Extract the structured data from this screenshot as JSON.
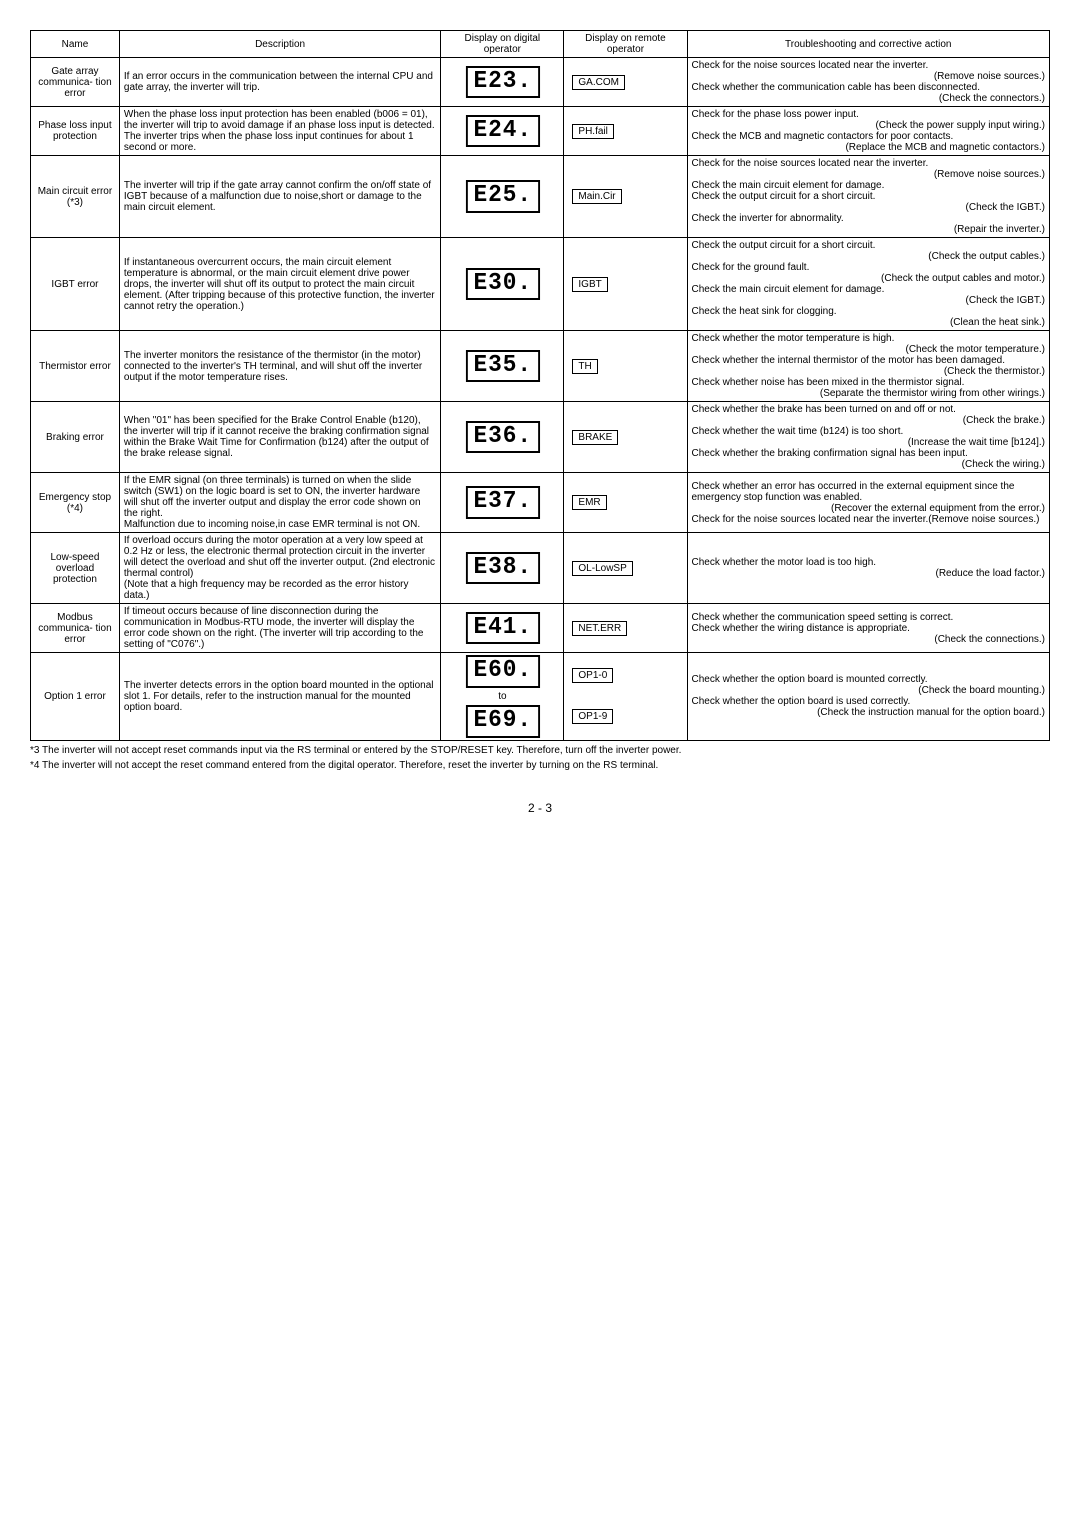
{
  "headers": {
    "name": "Name",
    "desc": "Description",
    "disp": "Display on digital operator",
    "remote": "Display on remote operator",
    "action": "Troubleshooting and corrective action"
  },
  "rows": [
    {
      "name": "Gate array communica- tion error",
      "desc": "If an error occurs in the communication between the internal CPU and gate array, the inverter will trip.",
      "seg": "E23.",
      "remote": "GA.COM",
      "action": [
        {
          "t": "Check for the noise sources located near the inverter.",
          "a": "l"
        },
        {
          "t": "(Remove noise sources.)",
          "a": "r"
        },
        {
          "t": "Check whether the communication cable has been disconnected.",
          "a": "l"
        },
        {
          "t": "(Check the connectors.)",
          "a": "r"
        }
      ]
    },
    {
      "name": "Phase loss input protection",
      "desc": "When the phase loss input protection has been enabled (b006 = 01), the inverter will trip to avoid damage if an phase loss input is detected. The inverter trips when the phase loss input continues for about 1 second or more.",
      "seg": "E24.",
      "remote": "PH.fail",
      "action": [
        {
          "t": "Check for the phase loss power input.",
          "a": "l"
        },
        {
          "t": "(Check the power supply input wiring.)",
          "a": "r"
        },
        {
          "t": "Check the MCB and magnetic contactors for poor contacts.",
          "a": "l"
        },
        {
          "t": "(Replace the MCB and magnetic contactors.)",
          "a": "r"
        }
      ]
    },
    {
      "name": "Main circuit error (*3)",
      "desc": "The inverter will trip if the gate array cannot confirm the on/off state of IGBT because of a malfunction due to noise,short or damage to the main circuit element.",
      "seg": "E25.",
      "remote": "Main.Cir",
      "action": [
        {
          "t": "Check for the noise sources located near the inverter.",
          "a": "l"
        },
        {
          "t": "(Remove noise sources.)",
          "a": "r"
        },
        {
          "t": "Check the main circuit element for damage.",
          "a": "l"
        },
        {
          "t": "Check the output circuit for a short circuit.",
          "a": "l"
        },
        {
          "t": "(Check the IGBT.)",
          "a": "r"
        },
        {
          "t": "Check the inverter for abnormality.",
          "a": "l"
        },
        {
          "t": "(Repair the inverter.)",
          "a": "r"
        }
      ]
    },
    {
      "name": "IGBT error",
      "desc": "If instantaneous overcurrent occurs, the main circuit element temperature is abnormal, or the main circuit element drive power drops, the inverter will shut off its output to protect the main circuit element. (After tripping because of this protective function, the inverter cannot retry the operation.)",
      "seg": "E30.",
      "remote": "IGBT",
      "action": [
        {
          "t": "Check the output circuit for a short circuit.",
          "a": "l"
        },
        {
          "t": "(Check the output cables.)",
          "a": "r"
        },
        {
          "t": "Check for the ground fault.",
          "a": "l"
        },
        {
          "t": "(Check the output cables and motor.)",
          "a": "r"
        },
        {
          "t": "Check the main circuit element for damage.",
          "a": "l"
        },
        {
          "t": "(Check the IGBT.)",
          "a": "r"
        },
        {
          "t": "Check the heat sink for clogging.",
          "a": "l"
        },
        {
          "t": "(Clean the heat sink.)",
          "a": "r"
        }
      ]
    },
    {
      "name": "Thermistor error",
      "desc": "The inverter monitors the resistance of the thermistor (in the motor) connected to the inverter's TH terminal, and will shut off the inverter output if the motor temperature rises.",
      "seg": "E35.",
      "remote": "TH",
      "action": [
        {
          "t": "Check whether the motor temperature is high.",
          "a": "l"
        },
        {
          "t": "(Check the motor temperature.)",
          "a": "r"
        },
        {
          "t": "Check whether the internal thermistor of the motor has been damaged.",
          "a": "l"
        },
        {
          "t": "(Check the thermistor.)",
          "a": "r"
        },
        {
          "t": "Check whether noise has been mixed in the thermistor signal.",
          "a": "l"
        },
        {
          "t": "(Separate the thermistor wiring from other wirings.)",
          "a": "r"
        }
      ]
    },
    {
      "name": "Braking error",
      "desc": "When \"01\" has been specified for the Brake Control Enable (b120), the inverter will trip if it cannot receive the braking confirmation signal within the Brake Wait Time for Confirmation (b124) after the output of the brake release signal.",
      "seg": "E36.",
      "remote": "BRAKE",
      "action": [
        {
          "t": "Check whether the brake has been turned on and off or not.",
          "a": "l"
        },
        {
          "t": "(Check the brake.)",
          "a": "r"
        },
        {
          "t": "Check whether the wait time (b124) is too short.",
          "a": "l"
        },
        {
          "t": "(Increase the wait time [b124].)",
          "a": "r"
        },
        {
          "t": "Check whether the braking confirmation signal has been input.",
          "a": "l"
        },
        {
          "t": "(Check the wiring.)",
          "a": "r"
        }
      ]
    },
    {
      "name": "Emergency stop (*4)",
      "desc": "If the EMR signal (on three terminals) is turned on when the slide switch (SW1) on the logic board is set to ON, the inverter hardware will shut off the inverter output and display the error code shown on the right.\nMalfunction due to incoming noise,in case EMR terminal is not ON.",
      "seg": "E37.",
      "remote": "EMR",
      "action": [
        {
          "t": "Check whether an error has occurred in the external equipment since the emergency stop function was enabled.",
          "a": "l"
        },
        {
          "t": "(Recover the external equipment from the error.)",
          "a": "r"
        },
        {
          "t": "Check for the noise sources located near the inverter.(Remove noise sources.)",
          "a": "l"
        }
      ]
    },
    {
      "name": "Low-speed overload protection",
      "desc": "If overload occurs during the motor operation at a very low speed at 0.2 Hz or less, the electronic thermal protection circuit in the inverter will detect the overload and shut off the inverter output. (2nd electronic thermal control)\n(Note that a high frequency may be recorded as the error history data.)",
      "seg": "E38.",
      "remote": "OL-LowSP",
      "action": [
        {
          "t": "Check whether the motor load is too high.",
          "a": "l"
        },
        {
          "t": "(Reduce the load factor.)",
          "a": "r"
        }
      ]
    },
    {
      "name": "Modbus communica- tion error",
      "desc": "If timeout occurs because of line disconnection during the communication in Modbus-RTU mode, the inverter will display the error code shown on the right. (The inverter will trip according to the setting of \"C076\".)",
      "seg": "E41.",
      "remote": "NET.ERR",
      "action": [
        {
          "t": "Check whether the communication speed setting is correct.",
          "a": "l"
        },
        {
          "t": "Check whether the wiring distance is appropriate.",
          "a": "l"
        },
        {
          "t": "(Check the connections.)",
          "a": "r"
        }
      ]
    },
    {
      "name": "Option 1 error",
      "desc": "The inverter detects errors in the option board mounted in the optional slot 1. For details, refer to the instruction manual for the mounted option board.",
      "seg": "E60.",
      "seg2": "E69.",
      "seg_to": "to",
      "remote": "OP1-0",
      "remote2": "OP1-9",
      "action": [
        {
          "t": "Check whether the option board is mounted correctly.",
          "a": "l"
        },
        {
          "t": "(Check the board mounting.)",
          "a": "r"
        },
        {
          "t": "Check whether the option board is used correctly.",
          "a": "l"
        },
        {
          "t": "(Check the instruction manual for the option board.)",
          "a": "r"
        }
      ]
    }
  ],
  "notes": {
    "n3": "*3  The inverter will not accept reset commands input via the RS terminal or entered by the STOP/RESET key. Therefore, turn off the inverter power.",
    "n4": "*4  The inverter will not accept the reset command entered from the digital operator. Therefore, reset the inverter by turning on the RS terminal."
  },
  "page": "2 - 3"
}
